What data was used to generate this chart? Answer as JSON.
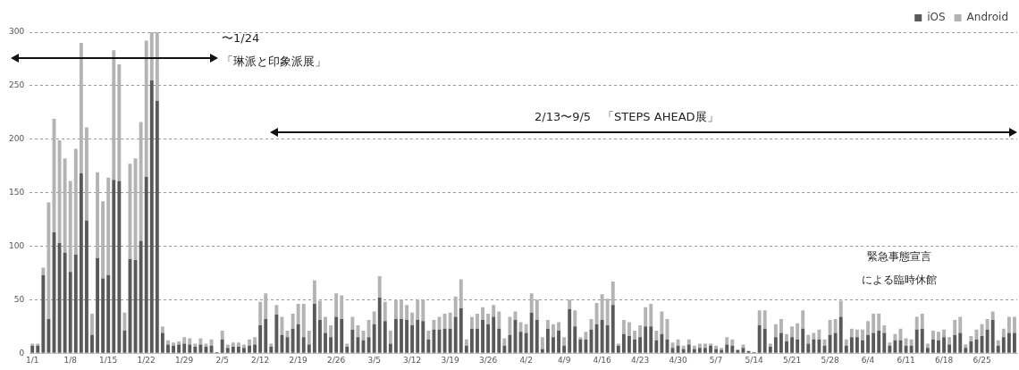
{
  "chart_data": {
    "type": "bar",
    "stacked": true,
    "categories": [
      "1/1",
      null,
      null,
      null,
      null,
      null,
      null,
      "1/8",
      null,
      null,
      null,
      null,
      null,
      null,
      "1/15",
      null,
      null,
      null,
      null,
      null,
      null,
      "1/22",
      null,
      null,
      null,
      null,
      null,
      null,
      "1/29",
      null,
      null,
      null,
      null,
      null,
      null,
      "2/5",
      null,
      null,
      null,
      null,
      null,
      null,
      "2/12",
      null,
      null,
      null,
      null,
      null,
      null,
      "2/19",
      null,
      null,
      null,
      null,
      null,
      null,
      "2/26",
      null,
      null,
      null,
      null,
      null,
      null,
      "3/5",
      null,
      null,
      null,
      null,
      null,
      null,
      "3/12",
      null,
      null,
      null,
      null,
      null,
      null,
      "3/19",
      null,
      null,
      null,
      null,
      null,
      null,
      "3/26",
      null,
      null,
      null,
      null,
      null,
      null,
      "4/2",
      null,
      null,
      null,
      null,
      null,
      null,
      "4/9",
      null,
      null,
      null,
      null,
      null,
      null,
      "4/16",
      null,
      null,
      null,
      null,
      null,
      null,
      "4/23",
      null,
      null,
      null,
      null,
      null,
      null,
      "4/30",
      null,
      null,
      null,
      null,
      null,
      null,
      "5/7",
      null,
      null,
      null,
      null,
      null,
      null,
      "5/14",
      null,
      null,
      null,
      null,
      null,
      null,
      "5/21",
      null,
      null,
      null,
      null,
      null,
      null,
      "5/28",
      null,
      null,
      null,
      null,
      null,
      null,
      "6/4",
      null,
      null,
      null,
      null,
      null,
      null,
      "6/11",
      null,
      null,
      null,
      null,
      null,
      null,
      "6/18",
      null,
      null,
      null,
      null,
      null,
      null,
      "6/25",
      null,
      null,
      null,
      null,
      null,
      null
    ],
    "series": [
      {
        "name": "iOS",
        "color": "#595959",
        "values": [
          7,
          7,
          73,
          32,
          113,
          103,
          94,
          76,
          92,
          168,
          124,
          17,
          89,
          70,
          73,
          162,
          161,
          21,
          88,
          87,
          105,
          165,
          255,
          236,
          19,
          8,
          7,
          8,
          9,
          8,
          6,
          8,
          6,
          7,
          1,
          13,
          5,
          6,
          6,
          5,
          7,
          8,
          26,
          32,
          6,
          36,
          17,
          15,
          23,
          27,
          15,
          8,
          46,
          31,
          19,
          15,
          34,
          32,
          6,
          22,
          15,
          12,
          15,
          27,
          52,
          30,
          9,
          32,
          32,
          31,
          26,
          31,
          30,
          13,
          22,
          22,
          23,
          23,
          34,
          42,
          7,
          23,
          23,
          31,
          27,
          34,
          23,
          7,
          17,
          31,
          20,
          19,
          38,
          31,
          4,
          23,
          15,
          21,
          7,
          41,
          25,
          13,
          13,
          22,
          27,
          31,
          26,
          45,
          7,
          18,
          16,
          13,
          15,
          25,
          25,
          12,
          18,
          13,
          5,
          7,
          4,
          8,
          4,
          5,
          5,
          7,
          4,
          3,
          8,
          7,
          3,
          5,
          2,
          1,
          26,
          23,
          6,
          15,
          19,
          11,
          15,
          13,
          23,
          9,
          13,
          13,
          7,
          17,
          19,
          34,
          7,
          15,
          15,
          12,
          17,
          19,
          21,
          19,
          7,
          12,
          12,
          7,
          7,
          22,
          23,
          5,
          13,
          12,
          15,
          8,
          17,
          19,
          5,
          11,
          13,
          16,
          22,
          31,
          7,
          15,
          19,
          19
        ]
      },
      {
        "name": "Android",
        "color": "#b3b3b3",
        "values": [
          2,
          2,
          7,
          109,
          106,
          96,
          88,
          85,
          99,
          122,
          87,
          20,
          80,
          72,
          91,
          121,
          109,
          17,
          89,
          95,
          111,
          127,
          45,
          64,
          6,
          4,
          3,
          3,
          6,
          6,
          3,
          6,
          3,
          6,
          null,
          8,
          3,
          4,
          4,
          3,
          6,
          7,
          22,
          24,
          3,
          9,
          17,
          6,
          14,
          19,
          31,
          13,
          22,
          18,
          15,
          11,
          22,
          22,
          3,
          12,
          11,
          9,
          16,
          12,
          20,
          18,
          12,
          18,
          18,
          14,
          12,
          19,
          20,
          8,
          9,
          12,
          14,
          15,
          19,
          27,
          6,
          11,
          14,
          12,
          10,
          11,
          16,
          7,
          17,
          8,
          9,
          8,
          18,
          19,
          11,
          8,
          12,
          8,
          8,
          9,
          15,
          2,
          7,
          10,
          20,
          24,
          25,
          22,
          2,
          13,
          13,
          8,
          11,
          18,
          21,
          9,
          21,
          19,
          5,
          6,
          3,
          5,
          3,
          4,
          4,
          2,
          3,
          2,
          7,
          6,
          null,
          3,
          null,
          null,
          14,
          17,
          3,
          12,
          13,
          7,
          10,
          15,
          17,
          8,
          6,
          9,
          6,
          14,
          13,
          15,
          6,
          8,
          7,
          10,
          13,
          18,
          16,
          7,
          3,
          6,
          11,
          7,
          6,
          12,
          14,
          4,
          8,
          8,
          7,
          7,
          14,
          15,
          3,
          5,
          9,
          11,
          10,
          8,
          5,
          8,
          15,
          15
        ]
      }
    ],
    "ylim": [
      0,
      300
    ],
    "yticks": [
      0,
      50,
      100,
      150,
      200,
      250,
      300
    ],
    "grid": "y",
    "legend": "top right",
    "annotations": [
      "〜1/24",
      "「琳派と印象派展」",
      "2/13〜9/5　「STEPS AHEAD展」",
      "緊急事態宣言",
      "による臨時休館"
    ]
  }
}
